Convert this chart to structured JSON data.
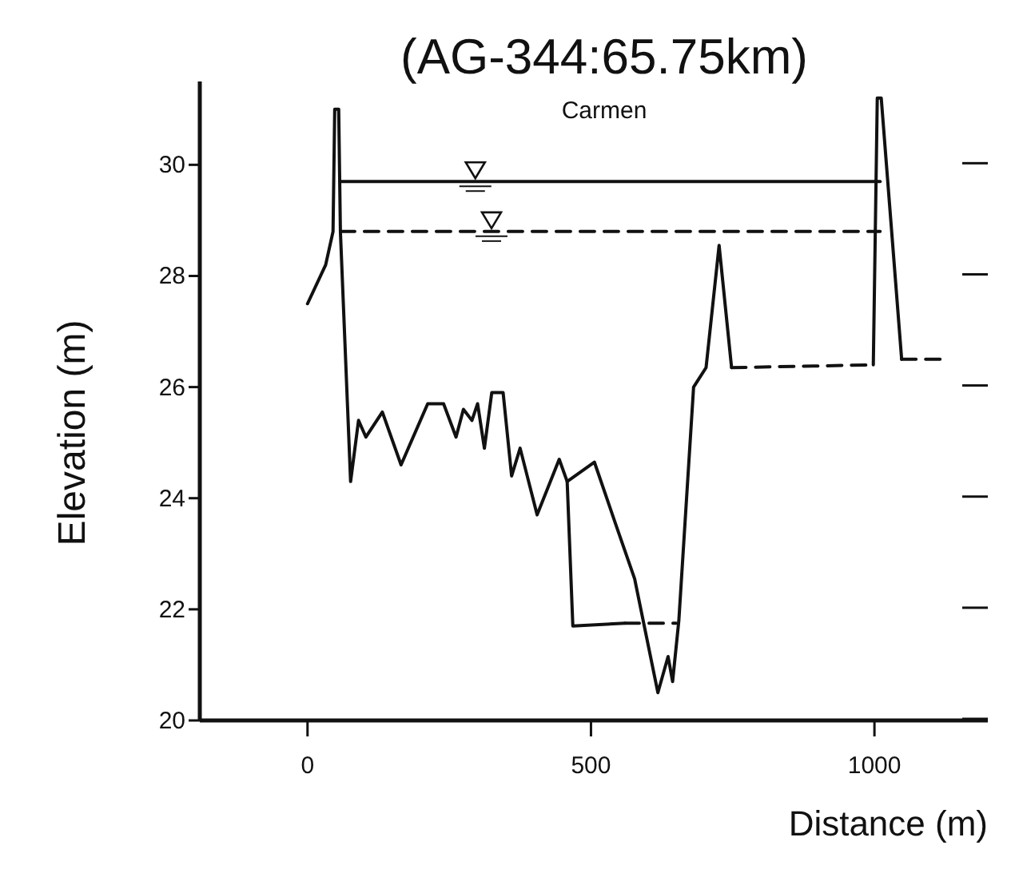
{
  "chart_data": {
    "type": "line",
    "title": "(AG-344:65.75km)",
    "subtitle": "Carmen",
    "xlabel": "Distance (m)",
    "ylabel": "Elevation (m)",
    "xlim": [
      -190,
      1200
    ],
    "ylim": [
      20,
      31.5
    ],
    "xticks": [
      0,
      500,
      1000
    ],
    "yticks": [
      20,
      22,
      24,
      26,
      28,
      30
    ],
    "grid": false,
    "series": [
      {
        "color": "#111111",
        "line_style": "solid",
        "x": [
          0,
          32,
          45,
          48,
          55,
          58,
          76,
          90,
          103,
          132,
          165,
          212,
          240,
          262,
          275,
          290,
          300,
          312,
          325,
          345,
          360,
          375,
          405,
          444,
          458,
          506,
          543,
          577,
          618,
          636,
          644,
          655,
          681,
          703,
          726,
          748
        ],
        "values": [
          27.5,
          28.2,
          28.8,
          31.0,
          31.0,
          28.8,
          24.3,
          25.4,
          25.1,
          25.55,
          24.6,
          25.7,
          25.7,
          25.1,
          25.6,
          25.4,
          25.7,
          24.9,
          25.9,
          25.9,
          24.4,
          24.9,
          23.7,
          24.7,
          24.3,
          24.65,
          23.55,
          22.55,
          20.5,
          21.15,
          20.7,
          21.8,
          26.0,
          26.35,
          28.55,
          26.35
        ]
      },
      {
        "color": "#111111",
        "line_style": "solid",
        "x": [
          458,
          468,
          560
        ],
        "values": [
          24.3,
          21.7,
          21.75
        ]
      },
      {
        "color": "#111111",
        "line_style": "dashed",
        "x": [
          560,
          650
        ],
        "values": [
          21.75,
          21.75
        ]
      },
      {
        "color": "#111111",
        "line_style": "dashed",
        "x": [
          748,
          998
        ],
        "values": [
          26.35,
          26.4
        ]
      },
      {
        "color": "#111111",
        "line_style": "solid",
        "x": [
          998,
          1005,
          1012,
          1048
        ],
        "values": [
          26.4,
          31.2,
          31.2,
          26.5
        ]
      },
      {
        "color": "#111111",
        "line_style": "dashed",
        "x": [
          1048,
          1127
        ],
        "values": [
          26.5,
          26.5
        ]
      },
      {
        "color": "#111111",
        "line_style": "solid",
        "x": [
          58,
          1010
        ],
        "values": [
          29.7,
          29.7
        ]
      },
      {
        "color": "#111111",
        "line_style": "dashed",
        "x": [
          58,
          1010
        ],
        "values": [
          28.8,
          28.8
        ]
      }
    ]
  }
}
